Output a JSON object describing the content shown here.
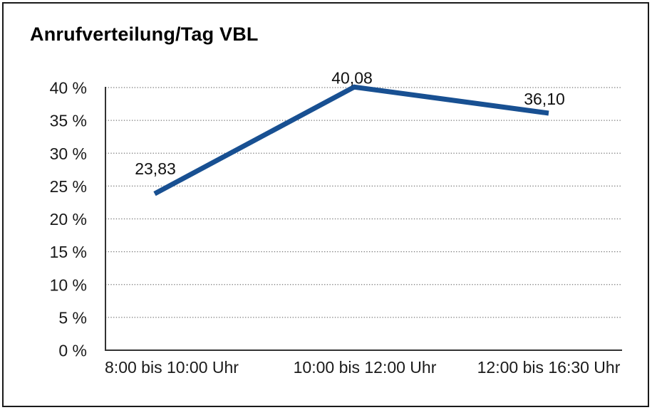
{
  "window": {
    "background": "#ffffff",
    "border_color": "#1a1a1a"
  },
  "chart_data": {
    "type": "line",
    "title": "Anrufverteilung/Tag VBL",
    "categories": [
      "8:00 bis 10:00 Uhr",
      "10:00 bis 12:00 Uhr",
      "12:00 bis 16:30 Uhr"
    ],
    "values": [
      23.83,
      40.08,
      36.1
    ],
    "data_labels": [
      "23,83",
      "40,08",
      "36,10"
    ],
    "xlabel": "",
    "ylabel": "",
    "ylim": [
      0,
      40
    ],
    "ytick_step": 5,
    "ytick_labels": [
      "0 %",
      "5 %",
      "10 %",
      "15 %",
      "20 %",
      "25 %",
      "30 %",
      "35 %",
      "40 %"
    ],
    "grid": "horizontal-dotted",
    "legend": "none",
    "line_color": "#185092",
    "grid_color": "#757575",
    "axis_color": "#333333",
    "text_color": "#1a1a1a"
  }
}
